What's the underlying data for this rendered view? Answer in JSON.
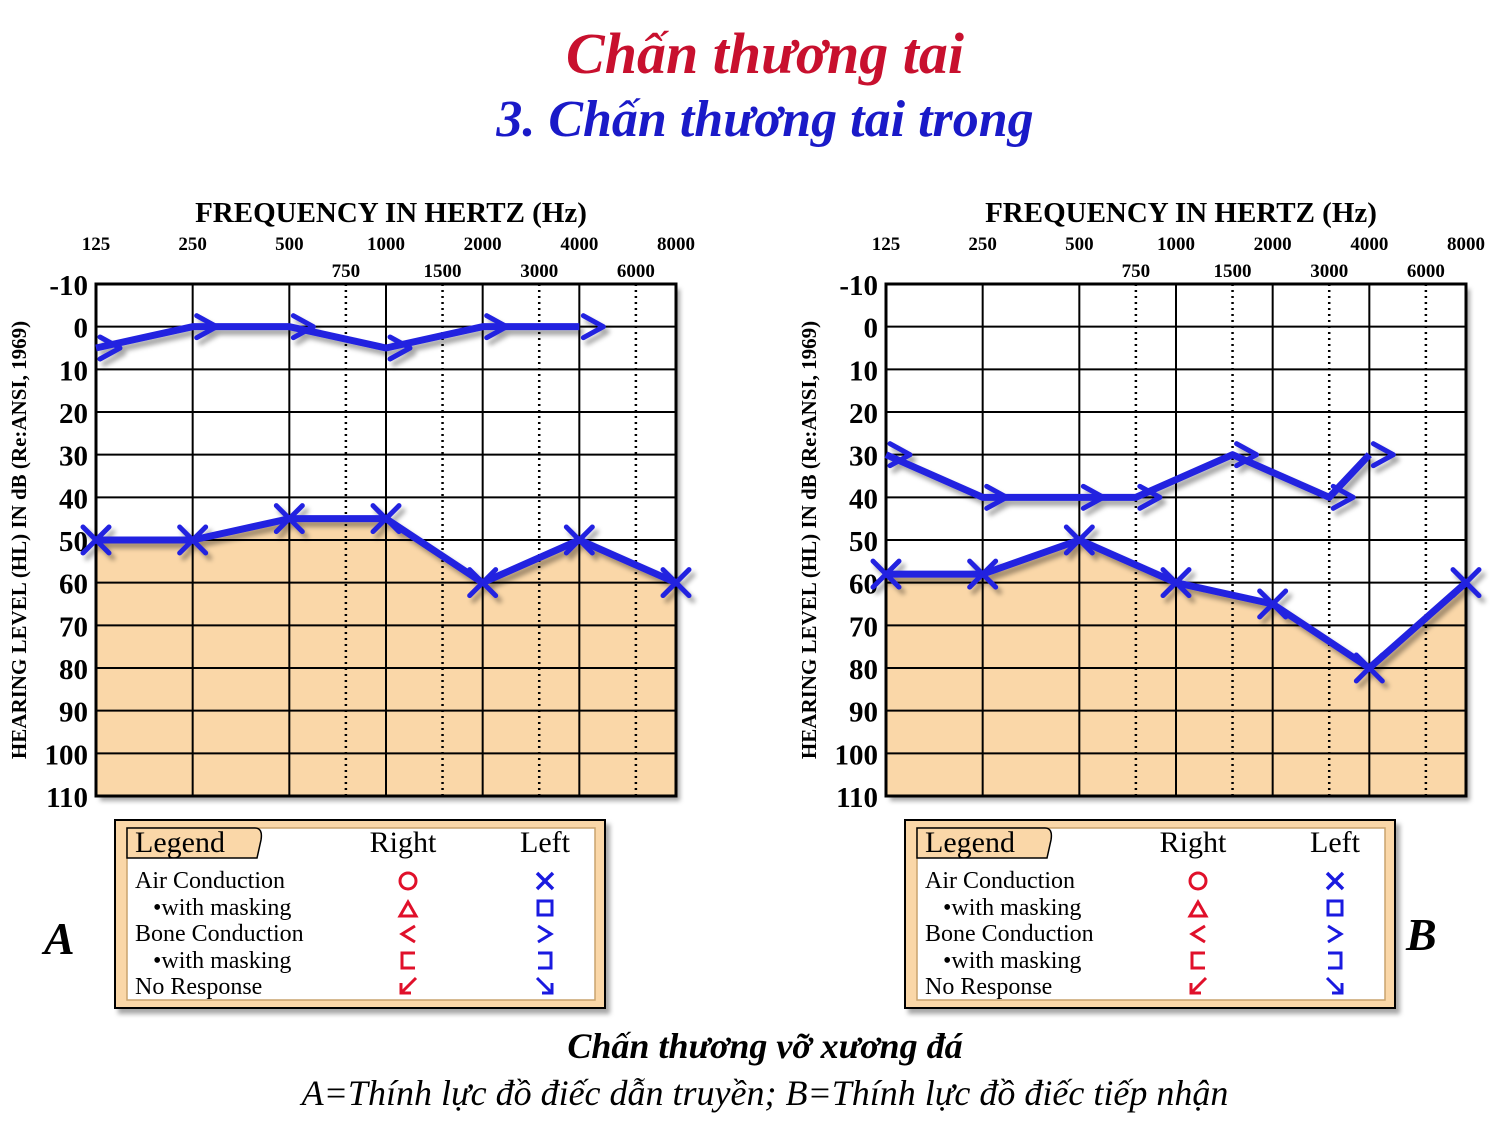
{
  "title": "Chấn thương tai",
  "subtitle": "3. Chấn thương tai trong",
  "caption_title": "Chấn thương vỡ xương đá",
  "caption_text": "A=Thính lực đồ điếc dẫn truyền;  B=Thính lực đồ điếc tiếp nhận",
  "legend": {
    "heading": "Legend",
    "col_right": "Right",
    "col_left": "Left",
    "rows": [
      "Air Conduction",
      "•with masking",
      "Bone Conduction",
      "•with masking",
      "No Response"
    ]
  },
  "colors": {
    "plot": "#2424e0",
    "fill": "#fad7a8",
    "red": "#e0102a",
    "blue": "#1a1ae0"
  },
  "chart_data": [
    {
      "type": "line",
      "panel_label": "A",
      "xlabel": "FREQUENCY IN HERTZ (Hz)",
      "ylabel": "HEARING LEVEL (HL) IN dB (Re:ANSI, 1969)",
      "x_ticks_major": [
        "125",
        "250",
        "500",
        "1000",
        "2000",
        "4000",
        "8000"
      ],
      "x_ticks_minor": [
        "750",
        "1500",
        "3000",
        "6000"
      ],
      "y_ticks": [
        "-10",
        "0",
        "10",
        "20",
        "30",
        "40",
        "50",
        "60",
        "70",
        "80",
        "90",
        "100",
        "110"
      ],
      "ylim": [
        -10,
        110
      ],
      "y_inverted": true,
      "series": [
        {
          "marker": "x",
          "x": [
            125,
            250,
            500,
            1000,
            2000,
            4000,
            8000
          ],
          "values": [
            50,
            50,
            45,
            45,
            60,
            50,
            60
          ],
          "shaded_below": true
        },
        {
          "marker": ">",
          "x": [
            125,
            250,
            500,
            1000,
            2000,
            4000
          ],
          "values": [
            5,
            0,
            0,
            5,
            0,
            0
          ]
        }
      ]
    },
    {
      "type": "line",
      "panel_label": "B",
      "xlabel": "FREQUENCY IN HERTZ (Hz)",
      "ylabel": "HEARING LEVEL (HL) IN dB (Re:ANSI, 1969)",
      "x_ticks_major": [
        "125",
        "250",
        "500",
        "1000",
        "2000",
        "4000",
        "8000"
      ],
      "x_ticks_minor": [
        "750",
        "1500",
        "3000",
        "6000"
      ],
      "y_ticks": [
        "-10",
        "0",
        "10",
        "20",
        "30",
        "40",
        "50",
        "60",
        "70",
        "80",
        "90",
        "100",
        "110"
      ],
      "ylim": [
        -10,
        110
      ],
      "y_inverted": true,
      "series": [
        {
          "marker": "x",
          "x": [
            125,
            250,
            500,
            1000,
            2000,
            4000,
            8000
          ],
          "values": [
            58,
            58,
            50,
            60,
            65,
            80,
            60
          ],
          "shaded_below": true
        },
        {
          "marker": ">",
          "x": [
            125,
            250,
            500,
            750,
            1500,
            3000,
            4000
          ],
          "values": [
            30,
            40,
            40,
            40,
            30,
            40,
            30
          ]
        }
      ]
    }
  ]
}
